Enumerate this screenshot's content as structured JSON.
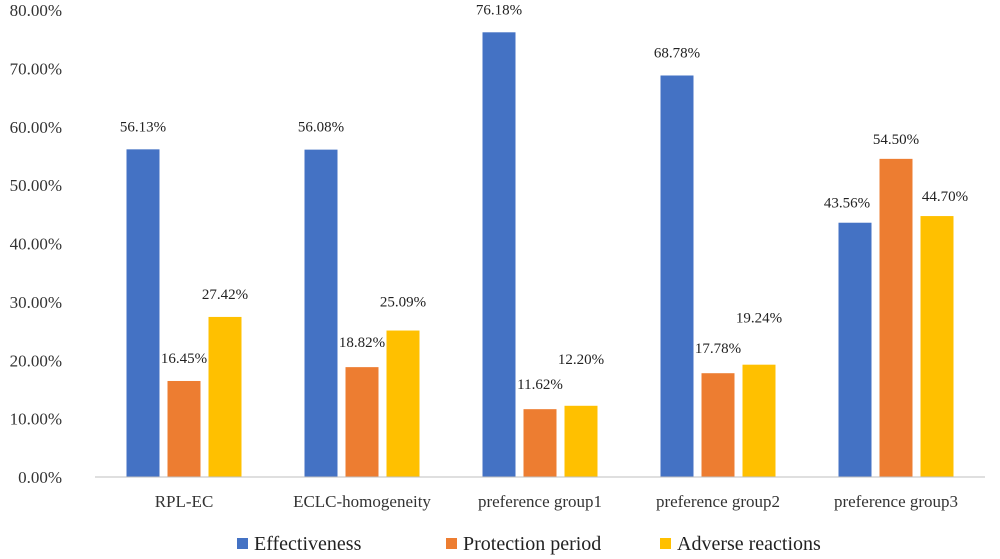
{
  "chart_data": {
    "type": "bar",
    "title": "",
    "xlabel": "",
    "ylabel": "",
    "categories": [
      "RPL-EC",
      "ECLC-homogeneity",
      "preference group1",
      "preference group2",
      "preference group3"
    ],
    "series": [
      {
        "name": "Effectiveness",
        "color": "#4472C4",
        "values": [
          56.13,
          56.08,
          76.18,
          68.78,
          43.56
        ],
        "labels": [
          "56.13%",
          "56.08%",
          "76.18%",
          "68.78%",
          "43.56%"
        ]
      },
      {
        "name": "Protection period",
        "color": "#ED7D31",
        "values": [
          16.45,
          18.82,
          11.62,
          17.78,
          54.5
        ],
        "labels": [
          "16.45%",
          "18.82%",
          "11.62%",
          "17.78%",
          "54.50%"
        ]
      },
      {
        "name": "Adverse reactions",
        "color": "#FFC000",
        "values": [
          27.42,
          25.09,
          12.2,
          19.24,
          44.7
        ],
        "labels": [
          "27.42%",
          "25.09%",
          "12.20%",
          "19.24%",
          "44.70%"
        ]
      }
    ],
    "ylim": [
      0,
      80
    ],
    "yticks": [
      "0.00%",
      "10.00%",
      "20.00%",
      "30.00%",
      "40.00%",
      "50.00%",
      "60.00%",
      "70.00%",
      "80.00%"
    ],
    "grid": false,
    "legend_position": "bottom"
  }
}
